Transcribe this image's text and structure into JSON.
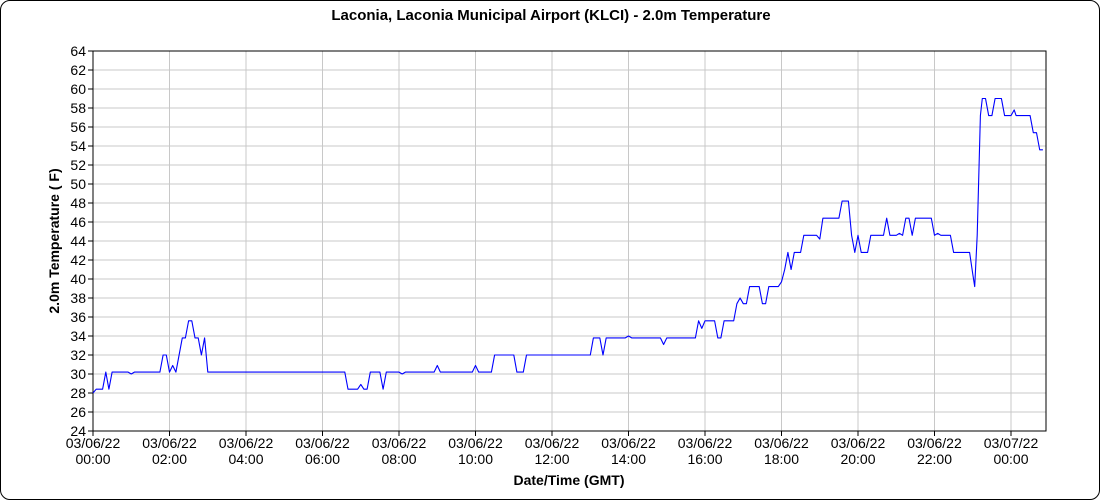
{
  "chart_data": {
    "type": "line",
    "title": "Laconia, Laconia Municipal Airport (KLCI) - 2.0m Temperature",
    "xlabel": "Date/Time (GMT)",
    "ylabel": "2.0m Temperature ( F)",
    "ylim": [
      24,
      64
    ],
    "xlim": [
      "2022-03-06T00:00",
      "2022-03-07T00:50"
    ],
    "y_ticks": [
      24,
      26,
      28,
      30,
      32,
      34,
      36,
      38,
      40,
      42,
      44,
      46,
      48,
      50,
      52,
      54,
      56,
      58,
      60,
      62,
      64
    ],
    "x_ticks": [
      {
        "x": "2022-03-06T00:00",
        "date": "03/06/22",
        "time": "00:00"
      },
      {
        "x": "2022-03-06T02:00",
        "date": "03/06/22",
        "time": "02:00"
      },
      {
        "x": "2022-03-06T04:00",
        "date": "03/06/22",
        "time": "04:00"
      },
      {
        "x": "2022-03-06T06:00",
        "date": "03/06/22",
        "time": "06:00"
      },
      {
        "x": "2022-03-06T08:00",
        "date": "03/06/22",
        "time": "08:00"
      },
      {
        "x": "2022-03-06T10:00",
        "date": "03/06/22",
        "time": "10:00"
      },
      {
        "x": "2022-03-06T12:00",
        "date": "03/06/22",
        "time": "12:00"
      },
      {
        "x": "2022-03-06T14:00",
        "date": "03/06/22",
        "time": "14:00"
      },
      {
        "x": "2022-03-06T16:00",
        "date": "03/06/22",
        "time": "16:00"
      },
      {
        "x": "2022-03-06T18:00",
        "date": "03/06/22",
        "time": "18:00"
      },
      {
        "x": "2022-03-06T20:00",
        "date": "03/06/22",
        "time": "20:00"
      },
      {
        "x": "2022-03-06T22:00",
        "date": "03/06/22",
        "time": "22:00"
      },
      {
        "x": "2022-03-07T00:00",
        "date": "03/07/22",
        "time": "00:00"
      }
    ],
    "grid": true,
    "series": [
      {
        "color": "#0000ff",
        "points": [
          [
            "2022-03-06T00:00",
            28.0
          ],
          [
            "2022-03-06T00:05",
            28.4
          ],
          [
            "2022-03-06T00:15",
            28.4
          ],
          [
            "2022-03-06T00:20",
            30.2
          ],
          [
            "2022-03-06T00:25",
            28.4
          ],
          [
            "2022-03-06T00:30",
            30.2
          ],
          [
            "2022-03-06T00:55",
            30.2
          ],
          [
            "2022-03-06T01:00",
            30.0
          ],
          [
            "2022-03-06T01:05",
            30.2
          ],
          [
            "2022-03-06T01:45",
            30.2
          ],
          [
            "2022-03-06T01:50",
            32.0
          ],
          [
            "2022-03-06T01:55",
            32.0
          ],
          [
            "2022-03-06T02:00",
            30.2
          ],
          [
            "2022-03-06T02:05",
            30.9
          ],
          [
            "2022-03-06T02:10",
            30.2
          ],
          [
            "2022-03-06T02:15",
            32.0
          ],
          [
            "2022-03-06T02:20",
            33.8
          ],
          [
            "2022-03-06T02:25",
            33.8
          ],
          [
            "2022-03-06T02:30",
            35.6
          ],
          [
            "2022-03-06T02:35",
            35.6
          ],
          [
            "2022-03-06T02:40",
            33.8
          ],
          [
            "2022-03-06T02:45",
            33.8
          ],
          [
            "2022-03-06T02:50",
            32.0
          ],
          [
            "2022-03-06T02:55",
            33.8
          ],
          [
            "2022-03-06T03:00",
            30.2
          ],
          [
            "2022-03-06T06:35",
            30.2
          ],
          [
            "2022-03-06T06:40",
            28.4
          ],
          [
            "2022-03-06T06:55",
            28.4
          ],
          [
            "2022-03-06T07:00",
            28.9
          ],
          [
            "2022-03-06T07:05",
            28.4
          ],
          [
            "2022-03-06T07:10",
            28.4
          ],
          [
            "2022-03-06T07:15",
            30.2
          ],
          [
            "2022-03-06T07:30",
            30.2
          ],
          [
            "2022-03-06T07:35",
            28.4
          ],
          [
            "2022-03-06T07:40",
            30.2
          ],
          [
            "2022-03-06T08:00",
            30.2
          ],
          [
            "2022-03-06T08:05",
            30.0
          ],
          [
            "2022-03-06T08:10",
            30.2
          ],
          [
            "2022-03-06T08:55",
            30.2
          ],
          [
            "2022-03-06T09:00",
            30.9
          ],
          [
            "2022-03-06T09:05",
            30.2
          ],
          [
            "2022-03-06T09:55",
            30.2
          ],
          [
            "2022-03-06T10:00",
            30.9
          ],
          [
            "2022-03-06T10:05",
            30.2
          ],
          [
            "2022-03-06T10:25",
            30.2
          ],
          [
            "2022-03-06T10:30",
            32.0
          ],
          [
            "2022-03-06T11:00",
            32.0
          ],
          [
            "2022-03-06T11:05",
            30.2
          ],
          [
            "2022-03-06T11:15",
            30.2
          ],
          [
            "2022-03-06T11:20",
            32.0
          ],
          [
            "2022-03-06T12:25",
            32.0
          ],
          [
            "2022-03-06T12:30",
            32.0
          ],
          [
            "2022-03-06T13:00",
            32.0
          ],
          [
            "2022-03-06T13:05",
            33.8
          ],
          [
            "2022-03-06T13:15",
            33.8
          ],
          [
            "2022-03-06T13:20",
            32.0
          ],
          [
            "2022-03-06T13:25",
            33.8
          ],
          [
            "2022-03-06T13:55",
            33.8
          ],
          [
            "2022-03-06T14:00",
            34.0
          ],
          [
            "2022-03-06T14:05",
            33.8
          ],
          [
            "2022-03-06T14:50",
            33.8
          ],
          [
            "2022-03-06T14:55",
            33.1
          ],
          [
            "2022-03-06T15:00",
            33.8
          ],
          [
            "2022-03-06T15:45",
            33.8
          ],
          [
            "2022-03-06T15:50",
            35.6
          ],
          [
            "2022-03-06T15:55",
            34.8
          ],
          [
            "2022-03-06T16:00",
            35.6
          ],
          [
            "2022-03-06T16:15",
            35.6
          ],
          [
            "2022-03-06T16:20",
            33.8
          ],
          [
            "2022-03-06T16:25",
            33.8
          ],
          [
            "2022-03-06T16:30",
            35.6
          ],
          [
            "2022-03-06T16:45",
            35.6
          ],
          [
            "2022-03-06T16:50",
            37.4
          ],
          [
            "2022-03-06T16:55",
            38.0
          ],
          [
            "2022-03-06T17:00",
            37.4
          ],
          [
            "2022-03-06T17:05",
            37.4
          ],
          [
            "2022-03-06T17:10",
            39.2
          ],
          [
            "2022-03-06T17:25",
            39.2
          ],
          [
            "2022-03-06T17:30",
            37.4
          ],
          [
            "2022-03-06T17:35",
            37.4
          ],
          [
            "2022-03-06T17:40",
            39.2
          ],
          [
            "2022-03-06T17:55",
            39.2
          ],
          [
            "2022-03-06T18:00",
            39.7
          ],
          [
            "2022-03-06T18:05",
            41.0
          ],
          [
            "2022-03-06T18:10",
            42.8
          ],
          [
            "2022-03-06T18:15",
            41.0
          ],
          [
            "2022-03-06T18:20",
            42.8
          ],
          [
            "2022-03-06T18:30",
            42.8
          ],
          [
            "2022-03-06T18:35",
            44.6
          ],
          [
            "2022-03-06T18:55",
            44.6
          ],
          [
            "2022-03-06T19:00",
            44.2
          ],
          [
            "2022-03-06T19:05",
            46.4
          ],
          [
            "2022-03-06T19:30",
            46.4
          ],
          [
            "2022-03-06T19:35",
            48.2
          ],
          [
            "2022-03-06T19:45",
            48.2
          ],
          [
            "2022-03-06T19:50",
            44.6
          ],
          [
            "2022-03-06T19:55",
            42.8
          ],
          [
            "2022-03-06T20:00",
            44.6
          ],
          [
            "2022-03-06T20:05",
            42.8
          ],
          [
            "2022-03-06T20:15",
            42.8
          ],
          [
            "2022-03-06T20:20",
            44.6
          ],
          [
            "2022-03-06T20:40",
            44.6
          ],
          [
            "2022-03-06T20:45",
            46.4
          ],
          [
            "2022-03-06T20:50",
            44.6
          ],
          [
            "2022-03-06T21:00",
            44.6
          ],
          [
            "2022-03-06T21:05",
            44.8
          ],
          [
            "2022-03-06T21:10",
            44.6
          ],
          [
            "2022-03-06T21:15",
            46.4
          ],
          [
            "2022-03-06T21:20",
            46.4
          ],
          [
            "2022-03-06T21:25",
            44.6
          ],
          [
            "2022-03-06T21:30",
            46.4
          ],
          [
            "2022-03-06T21:55",
            46.4
          ],
          [
            "2022-03-06T22:00",
            44.6
          ],
          [
            "2022-03-06T22:05",
            44.8
          ],
          [
            "2022-03-06T22:10",
            44.6
          ],
          [
            "2022-03-06T22:25",
            44.6
          ],
          [
            "2022-03-06T22:30",
            42.8
          ],
          [
            "2022-03-06T22:55",
            42.8
          ],
          [
            "2022-03-06T23:00",
            40.5
          ],
          [
            "2022-03-06T23:03",
            39.2
          ],
          [
            "2022-03-06T23:07",
            44.6
          ],
          [
            "2022-03-06T23:12",
            57.2
          ],
          [
            "2022-03-06T23:15",
            59.0
          ],
          [
            "2022-03-06T23:20",
            59.0
          ],
          [
            "2022-03-06T23:25",
            57.2
          ],
          [
            "2022-03-06T23:30",
            57.2
          ],
          [
            "2022-03-06T23:35",
            59.0
          ],
          [
            "2022-03-06T23:45",
            59.0
          ],
          [
            "2022-03-06T23:50",
            57.2
          ],
          [
            "2022-03-07T00:00",
            57.2
          ],
          [
            "2022-03-07T00:05",
            57.8
          ],
          [
            "2022-03-07T00:08",
            57.2
          ],
          [
            "2022-03-07T00:30",
            57.2
          ],
          [
            "2022-03-07T00:35",
            55.4
          ],
          [
            "2022-03-07T00:40",
            55.4
          ],
          [
            "2022-03-07T00:45",
            53.6
          ],
          [
            "2022-03-07T00:50",
            53.6
          ]
        ]
      }
    ]
  }
}
